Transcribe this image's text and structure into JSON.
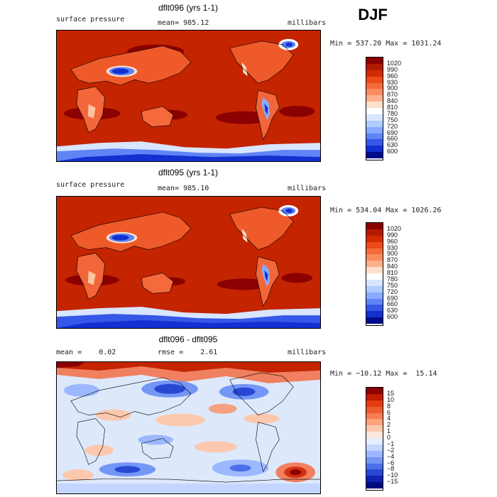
{
  "season": "DJF",
  "panels": [
    {
      "title": "dflt096 (yrs 1-1)",
      "left_text": "surface pressure",
      "center_text": "mean= 985.12",
      "right_text": "millibars",
      "minmax_text": "Min = 537.20 Max = 1031.24",
      "colorbar": {
        "labels": [
          "1020",
          "990",
          "960",
          "930",
          "900",
          "870",
          "840",
          "810",
          "780",
          "750",
          "720",
          "690",
          "660",
          "630",
          "600"
        ],
        "colors": [
          "#8b0000",
          "#b21a00",
          "#d42a00",
          "#ee4a1a",
          "#f56a3a",
          "#fa8c60",
          "#fcb08c",
          "#fde0cc",
          "#ffffff",
          "#d8e6ff",
          "#b0ccff",
          "#88aaff",
          "#5f84f5",
          "#3558e8",
          "#1430d0",
          "#000c8a"
        ]
      }
    },
    {
      "title": "dflt095 (yrs 1-1)",
      "left_text": "surface pressure",
      "center_text": "mean= 985.10",
      "right_text": "millibars",
      "minmax_text": "Min = 534.04 Max = 1026.26",
      "colorbar": {
        "labels": [
          "1020",
          "990",
          "960",
          "930",
          "900",
          "870",
          "840",
          "810",
          "780",
          "750",
          "720",
          "690",
          "660",
          "630",
          "600"
        ],
        "colors": [
          "#8b0000",
          "#b21a00",
          "#d42a00",
          "#ee4a1a",
          "#f56a3a",
          "#fa8c60",
          "#fcb08c",
          "#fde0cc",
          "#ffffff",
          "#d8e6ff",
          "#b0ccff",
          "#88aaff",
          "#5f84f5",
          "#3558e8",
          "#1430d0",
          "#000c8a"
        ]
      }
    },
    {
      "title": "dflt096 - dflt095",
      "left_text": "mean =    0.02",
      "center_text": "rmse =    2.61",
      "right_text": "millibars",
      "minmax_text": "Min = −10.12 Max =  15.14",
      "colorbar": {
        "labels": [
          "15",
          "10",
          "8",
          "6",
          "4",
          "2",
          "1",
          "0",
          "−1",
          "−2",
          "−4",
          "−6",
          "−8",
          "−10",
          "−15"
        ],
        "colors": [
          "#8b0000",
          "#c41a00",
          "#e43a10",
          "#f05a30",
          "#f77c52",
          "#fba27e",
          "#fcc8ad",
          "#fde6da",
          "#e6eeff",
          "#c4d6ff",
          "#9cb8ff",
          "#7496f5",
          "#4c70e8",
          "#2848d4",
          "#0e24b0",
          "#000a80"
        ]
      }
    }
  ]
}
